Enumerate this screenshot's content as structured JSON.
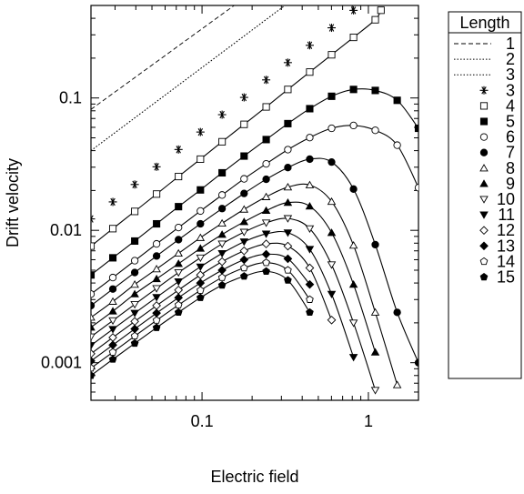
{
  "chart_data": {
    "type": "line",
    "xlabel": "Electric field",
    "ylabel": "Drift velocity",
    "x_scale": "log",
    "y_scale": "log",
    "xlim": [
      0.0215,
      2.0
    ],
    "ylim": [
      0.00052,
      0.5
    ],
    "x_ticks": [
      0.1,
      1
    ],
    "x_tick_labels": [
      "0.1",
      "1"
    ],
    "y_ticks": [
      0.001,
      0.01,
      0.1
    ],
    "y_tick_labels": [
      "0.001",
      "0.01",
      "0.1"
    ],
    "grid": false,
    "legend": {
      "title": "Length",
      "placement": "outside-right"
    },
    "series": [
      {
        "name": "1",
        "style": "dashed",
        "points": [
          [
            0.0215,
            0.082
          ],
          [
            0.156,
            0.5
          ]
        ]
      },
      {
        "name": "2",
        "style": "dotted",
        "points": [
          [
            0.0215,
            0.04
          ],
          [
            0.315,
            0.5
          ]
        ]
      },
      {
        "name": "3",
        "style": "dotted",
        "points": [
          [
            0.0215,
            0.04
          ],
          [
            0.315,
            0.5
          ]
        ]
      },
      {
        "name": "3",
        "style": "markers",
        "marker": "star",
        "points": [
          [
            0.0215,
            0.0122
          ],
          [
            0.0291,
            0.0164
          ],
          [
            0.0394,
            0.0222
          ],
          [
            0.0533,
            0.0302
          ],
          [
            0.0722,
            0.0408
          ],
          [
            0.0978,
            0.0553
          ],
          [
            0.132,
            0.0748
          ],
          [
            0.179,
            0.101
          ],
          [
            0.243,
            0.137
          ],
          [
            0.328,
            0.185
          ],
          [
            0.444,
            0.25
          ],
          [
            0.601,
            0.339
          ],
          [
            0.814,
            0.459
          ]
        ]
      },
      {
        "name": "4",
        "style": "line-markers",
        "marker": "open-square",
        "points": [
          [
            0.0215,
            0.0076
          ],
          [
            0.0291,
            0.0103
          ],
          [
            0.0394,
            0.0139
          ],
          [
            0.0533,
            0.0188
          ],
          [
            0.0722,
            0.0255
          ],
          [
            0.0978,
            0.0345
          ],
          [
            0.132,
            0.0467
          ],
          [
            0.179,
            0.0632
          ],
          [
            0.243,
            0.0856
          ],
          [
            0.328,
            0.116
          ],
          [
            0.444,
            0.157
          ],
          [
            0.601,
            0.212
          ],
          [
            0.814,
            0.287
          ],
          [
            1.1,
            0.39
          ],
          [
            1.19,
            0.46
          ]
        ]
      },
      {
        "name": "5",
        "style": "line-markers",
        "marker": "filled-square",
        "points": [
          [
            0.0215,
            0.0046
          ],
          [
            0.0291,
            0.0062
          ],
          [
            0.0394,
            0.0083
          ],
          [
            0.0533,
            0.0112
          ],
          [
            0.0722,
            0.0151
          ],
          [
            0.0978,
            0.0202
          ],
          [
            0.132,
            0.0272
          ],
          [
            0.179,
            0.0364
          ],
          [
            0.243,
            0.0485
          ],
          [
            0.328,
            0.064
          ],
          [
            0.444,
            0.083
          ],
          [
            0.601,
            0.103
          ],
          [
            0.814,
            0.116
          ],
          [
            1.1,
            0.114
          ],
          [
            1.49,
            0.096
          ],
          [
            2.0,
            0.059
          ]
        ]
      },
      {
        "name": "6",
        "style": "line-markers",
        "marker": "open-circle",
        "points": [
          [
            0.0215,
            0.0033
          ],
          [
            0.0291,
            0.0044
          ],
          [
            0.0394,
            0.0059
          ],
          [
            0.0533,
            0.0079
          ],
          [
            0.0722,
            0.0105
          ],
          [
            0.0978,
            0.014
          ],
          [
            0.132,
            0.0185
          ],
          [
            0.179,
            0.0245
          ],
          [
            0.243,
            0.0318
          ],
          [
            0.328,
            0.0407
          ],
          [
            0.444,
            0.0502
          ],
          [
            0.601,
            0.059
          ],
          [
            0.814,
            0.062
          ],
          [
            1.1,
            0.057
          ],
          [
            1.49,
            0.044
          ],
          [
            2.0,
            0.021
          ]
        ]
      },
      {
        "name": "7",
        "style": "line-markers",
        "marker": "filled-circle",
        "points": [
          [
            0.0215,
            0.0027
          ],
          [
            0.0291,
            0.0036
          ],
          [
            0.0394,
            0.0048
          ],
          [
            0.0533,
            0.0064
          ],
          [
            0.0722,
            0.0085
          ],
          [
            0.0978,
            0.0112
          ],
          [
            0.132,
            0.0146
          ],
          [
            0.179,
            0.019
          ],
          [
            0.243,
            0.0243
          ],
          [
            0.328,
            0.0298
          ],
          [
            0.444,
            0.0345
          ],
          [
            0.601,
            0.0328
          ],
          [
            0.814,
            0.0205
          ],
          [
            1.1,
            0.0078
          ],
          [
            1.49,
            0.0024
          ],
          [
            2.0,
            0.001
          ]
        ]
      },
      {
        "name": "8",
        "style": "line-markers",
        "marker": "open-triangle",
        "points": [
          [
            0.0215,
            0.0022
          ],
          [
            0.0291,
            0.0029
          ],
          [
            0.0394,
            0.0039
          ],
          [
            0.0533,
            0.0051
          ],
          [
            0.0722,
            0.0067
          ],
          [
            0.0978,
            0.0088
          ],
          [
            0.132,
            0.0113
          ],
          [
            0.179,
            0.0144
          ],
          [
            0.243,
            0.0179
          ],
          [
            0.328,
            0.0212
          ],
          [
            0.444,
            0.022
          ],
          [
            0.601,
            0.0165
          ],
          [
            0.814,
            0.0077
          ],
          [
            1.1,
            0.0024
          ],
          [
            1.49,
            0.00068
          ]
        ]
      },
      {
        "name": "9",
        "style": "line-markers",
        "marker": "filled-triangle",
        "points": [
          [
            0.0215,
            0.00185
          ],
          [
            0.0291,
            0.00245
          ],
          [
            0.0394,
            0.0033
          ],
          [
            0.0533,
            0.0043
          ],
          [
            0.0722,
            0.0056
          ],
          [
            0.0978,
            0.0073
          ],
          [
            0.132,
            0.0093
          ],
          [
            0.179,
            0.0116
          ],
          [
            0.243,
            0.0141
          ],
          [
            0.328,
            0.0162
          ],
          [
            0.444,
            0.0152
          ],
          [
            0.601,
            0.0096
          ],
          [
            0.814,
            0.0039
          ],
          [
            1.1,
            0.0012
          ]
        ]
      },
      {
        "name": "10",
        "style": "line-markers",
        "marker": "open-triangle-down",
        "points": [
          [
            0.0215,
            0.00157
          ],
          [
            0.0291,
            0.00208
          ],
          [
            0.0394,
            0.00276
          ],
          [
            0.0533,
            0.00364
          ],
          [
            0.0722,
            0.0048
          ],
          [
            0.0978,
            0.0062
          ],
          [
            0.132,
            0.0079
          ],
          [
            0.179,
            0.0097
          ],
          [
            0.243,
            0.0114
          ],
          [
            0.328,
            0.0123
          ],
          [
            0.444,
            0.0103
          ],
          [
            0.601,
            0.0055
          ],
          [
            0.814,
            0.002
          ],
          [
            1.1,
            0.00062
          ]
        ]
      },
      {
        "name": "11",
        "style": "line-markers",
        "marker": "filled-triangle-down",
        "points": [
          [
            0.0215,
            0.00135
          ],
          [
            0.0291,
            0.00179
          ],
          [
            0.0394,
            0.00237
          ],
          [
            0.0533,
            0.00312
          ],
          [
            0.0722,
            0.0041
          ],
          [
            0.0978,
            0.0053
          ],
          [
            0.132,
            0.0067
          ],
          [
            0.179,
            0.0082
          ],
          [
            0.243,
            0.0094
          ],
          [
            0.328,
            0.0096
          ],
          [
            0.444,
            0.0072
          ],
          [
            0.601,
            0.0033
          ],
          [
            0.814,
            0.0011
          ]
        ]
      },
      {
        "name": "12",
        "style": "line-markers",
        "marker": "open-diamond",
        "points": [
          [
            0.0215,
            0.00117
          ],
          [
            0.0291,
            0.00155
          ],
          [
            0.0394,
            0.00205
          ],
          [
            0.0533,
            0.0027
          ],
          [
            0.0722,
            0.00354
          ],
          [
            0.0978,
            0.0046
          ],
          [
            0.132,
            0.0058
          ],
          [
            0.179,
            0.007
          ],
          [
            0.243,
            0.0079
          ],
          [
            0.328,
            0.0076
          ],
          [
            0.444,
            0.0052
          ],
          [
            0.601,
            0.0021
          ]
        ]
      },
      {
        "name": "13",
        "style": "line-markers",
        "marker": "filled-diamond",
        "points": [
          [
            0.0215,
            0.00103
          ],
          [
            0.0291,
            0.00136
          ],
          [
            0.0394,
            0.0018
          ],
          [
            0.0533,
            0.00237
          ],
          [
            0.0722,
            0.0031
          ],
          [
            0.0978,
            0.004
          ],
          [
            0.132,
            0.005
          ],
          [
            0.179,
            0.006
          ],
          [
            0.243,
            0.0066
          ],
          [
            0.328,
            0.0061
          ],
          [
            0.444,
            0.0039
          ]
        ]
      },
      {
        "name": "14",
        "style": "line-markers",
        "marker": "open-pentagon",
        "points": [
          [
            0.0215,
            0.00091
          ],
          [
            0.0291,
            0.0012
          ],
          [
            0.0394,
            0.00159
          ],
          [
            0.0533,
            0.00209
          ],
          [
            0.0722,
            0.00273
          ],
          [
            0.0978,
            0.00352
          ],
          [
            0.132,
            0.0044
          ],
          [
            0.179,
            0.0052
          ],
          [
            0.243,
            0.0057
          ],
          [
            0.328,
            0.005
          ],
          [
            0.444,
            0.003
          ]
        ]
      },
      {
        "name": "15",
        "style": "line-markers",
        "marker": "filled-pentagon",
        "points": [
          [
            0.0215,
            0.0008
          ],
          [
            0.0291,
            0.00106
          ],
          [
            0.0394,
            0.0014
          ],
          [
            0.0533,
            0.00184
          ],
          [
            0.0722,
            0.0024
          ],
          [
            0.0978,
            0.0031
          ],
          [
            0.132,
            0.00385
          ],
          [
            0.179,
            0.0045
          ],
          [
            0.243,
            0.0049
          ],
          [
            0.328,
            0.0042
          ],
          [
            0.444,
            0.0024
          ]
        ]
      }
    ]
  }
}
